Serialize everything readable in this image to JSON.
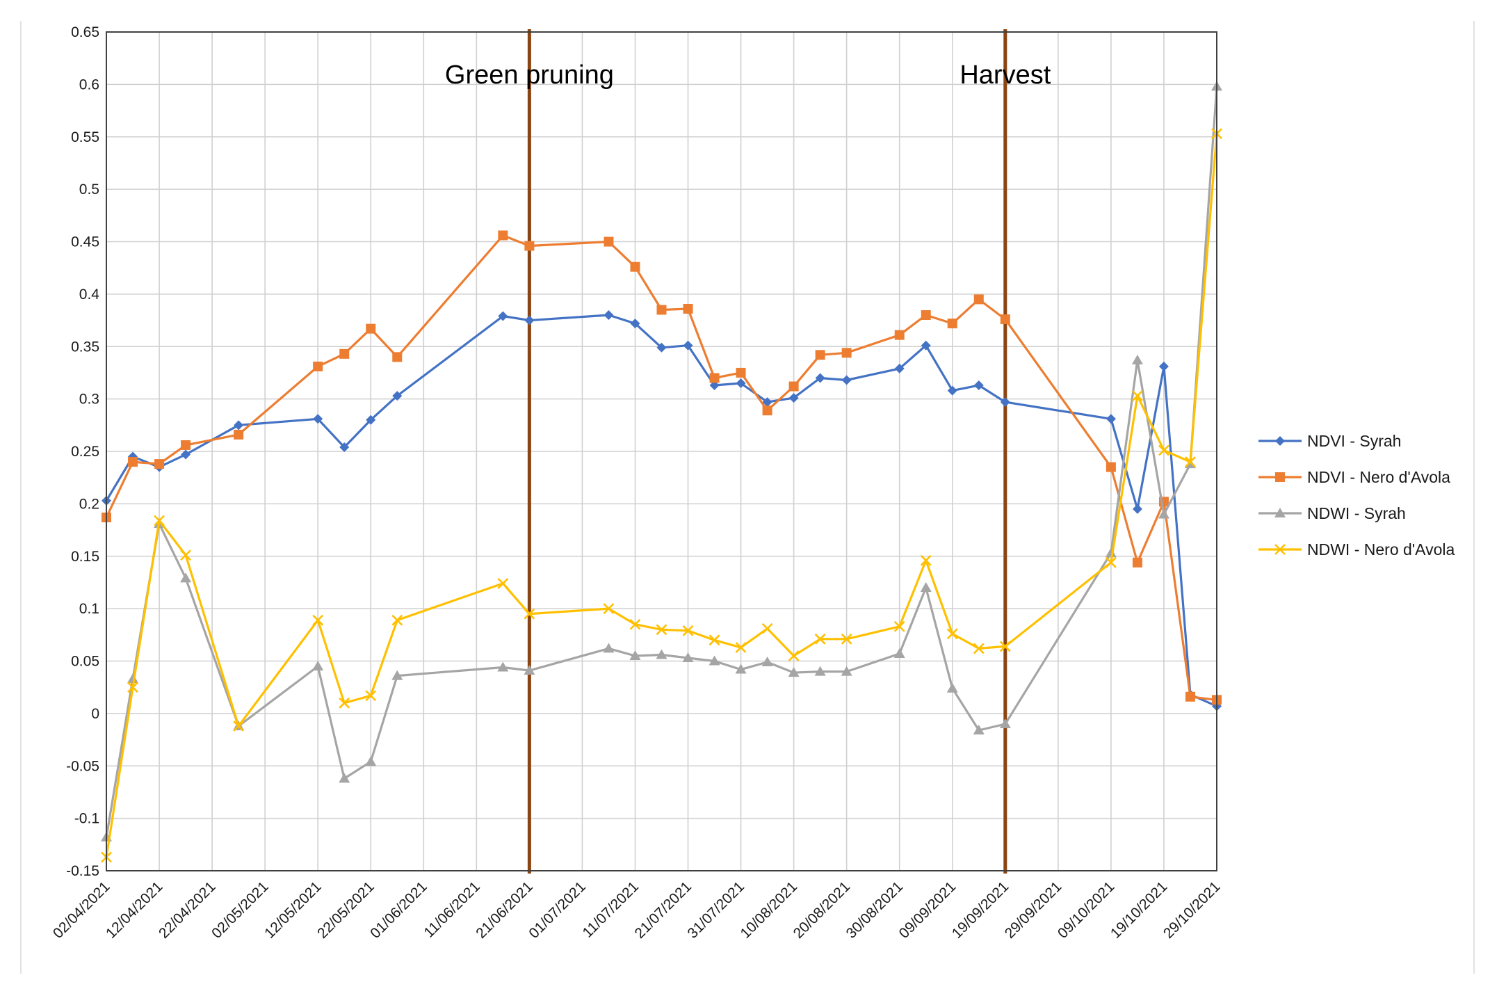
{
  "chart_data": {
    "type": "line",
    "title": "",
    "xlabel": "",
    "ylabel": "",
    "ylim": [
      -0.15,
      0.65
    ],
    "y_ticks": [
      "0.65",
      "0.6",
      "0.55",
      "0.5",
      "0.45",
      "0.4",
      "0.35",
      "0.3",
      "0.25",
      "0.2",
      "0.15",
      "0.1",
      "0.05",
      "0",
      "-0.05",
      "-0.1",
      "-0.15"
    ],
    "xlim": [
      "2021-04-02",
      "2021-10-29"
    ],
    "x_ticks": [
      {
        "date": "2021-04-02",
        "label": "02/04/2021"
      },
      {
        "date": "2021-04-12",
        "label": "12/04/2021"
      },
      {
        "date": "2021-04-22",
        "label": "22/04/2021"
      },
      {
        "date": "2021-05-02",
        "label": "02/05/2021"
      },
      {
        "date": "2021-05-12",
        "label": "12/05/2021"
      },
      {
        "date": "2021-05-22",
        "label": "22/05/2021"
      },
      {
        "date": "2021-06-01",
        "label": "01/06/2021"
      },
      {
        "date": "2021-06-11",
        "label": "11/06/2021"
      },
      {
        "date": "2021-06-21",
        "label": "21/06/2021"
      },
      {
        "date": "2021-07-01",
        "label": "01/07/2021"
      },
      {
        "date": "2021-07-11",
        "label": "11/07/2021"
      },
      {
        "date": "2021-07-21",
        "label": "21/07/2021"
      },
      {
        "date": "2021-07-31",
        "label": "31/07/2021"
      },
      {
        "date": "2021-08-10",
        "label": "10/08/2021"
      },
      {
        "date": "2021-08-20",
        "label": "20/08/2021"
      },
      {
        "date": "2021-08-30",
        "label": "30/08/2021"
      },
      {
        "date": "2021-09-09",
        "label": "09/09/2021"
      },
      {
        "date": "2021-09-19",
        "label": "19/09/2021"
      },
      {
        "date": "2021-09-29",
        "label": "29/09/2021"
      },
      {
        "date": "2021-10-09",
        "label": "09/10/2021"
      },
      {
        "date": "2021-10-19",
        "label": "19/10/2021"
      },
      {
        "date": "2021-10-29",
        "label": "29/10/2021"
      }
    ],
    "grid": true,
    "legend": "right",
    "x": [
      "2021-04-02",
      "2021-04-07",
      "2021-04-12",
      "2021-04-17",
      "2021-04-27",
      "2021-05-12",
      "2021-05-17",
      "2021-05-22",
      "2021-05-27",
      "2021-06-16",
      "2021-06-21",
      "2021-07-06",
      "2021-07-11",
      "2021-07-16",
      "2021-07-21",
      "2021-07-26",
      "2021-07-31",
      "2021-08-05",
      "2021-08-10",
      "2021-08-15",
      "2021-08-20",
      "2021-08-30",
      "2021-09-04",
      "2021-09-09",
      "2021-09-14",
      "2021-09-19",
      "2021-10-09",
      "2021-10-14",
      "2021-10-19",
      "2021-10-24",
      "2021-10-29"
    ],
    "series": [
      {
        "name": "NDVI - Syrah",
        "color": "#4472C4",
        "marker": "diamond",
        "values": [
          0.203,
          0.245,
          0.235,
          0.247,
          0.275,
          0.281,
          0.254,
          0.28,
          0.303,
          0.379,
          0.375,
          0.38,
          0.372,
          0.349,
          0.351,
          0.313,
          0.315,
          0.297,
          0.301,
          0.32,
          0.318,
          0.329,
          0.351,
          0.308,
          0.313,
          0.297,
          0.281,
          0.195,
          0.331,
          0.018,
          0.007
        ]
      },
      {
        "name": "NDVI - Nero d'Avola",
        "color": "#ED7D31",
        "marker": "square",
        "values": [
          0.187,
          0.24,
          0.238,
          0.256,
          0.266,
          0.331,
          0.343,
          0.367,
          0.34,
          0.456,
          0.446,
          0.45,
          0.426,
          0.385,
          0.386,
          0.32,
          0.325,
          0.289,
          0.312,
          0.342,
          0.344,
          0.361,
          0.38,
          0.372,
          0.395,
          0.376,
          0.235,
          0.144,
          0.202,
          0.016,
          0.013
        ]
      },
      {
        "name": "NDWI - Syrah",
        "color": "#A5A5A5",
        "marker": "triangle",
        "values": [
          -0.118,
          0.033,
          0.181,
          0.129,
          -0.012,
          0.045,
          -0.062,
          -0.046,
          0.036,
          0.044,
          0.041,
          0.062,
          0.055,
          0.056,
          0.053,
          0.05,
          0.042,
          0.049,
          0.039,
          0.04,
          0.04,
          0.057,
          0.12,
          0.024,
          -0.016,
          -0.01,
          0.153,
          0.337,
          0.19,
          0.238,
          0.598
        ]
      },
      {
        "name": "NDWI - Nero d'Avola",
        "color": "#FFC000",
        "marker": "x",
        "values": [
          -0.137,
          0.025,
          0.184,
          0.151,
          -0.012,
          0.089,
          0.01,
          0.017,
          0.089,
          0.124,
          0.095,
          0.1,
          0.085,
          0.08,
          0.079,
          0.07,
          0.063,
          0.081,
          0.055,
          0.071,
          0.071,
          0.083,
          0.146,
          0.076,
          0.062,
          0.064,
          0.144,
          0.303,
          0.251,
          0.24,
          0.553
        ]
      }
    ],
    "annotations": [
      {
        "text": "Green pruning",
        "date": "2021-06-21",
        "line_color": "#8B4513"
      },
      {
        "text": "Harvest",
        "date": "2021-09-19",
        "line_color": "#8B4513"
      }
    ]
  }
}
